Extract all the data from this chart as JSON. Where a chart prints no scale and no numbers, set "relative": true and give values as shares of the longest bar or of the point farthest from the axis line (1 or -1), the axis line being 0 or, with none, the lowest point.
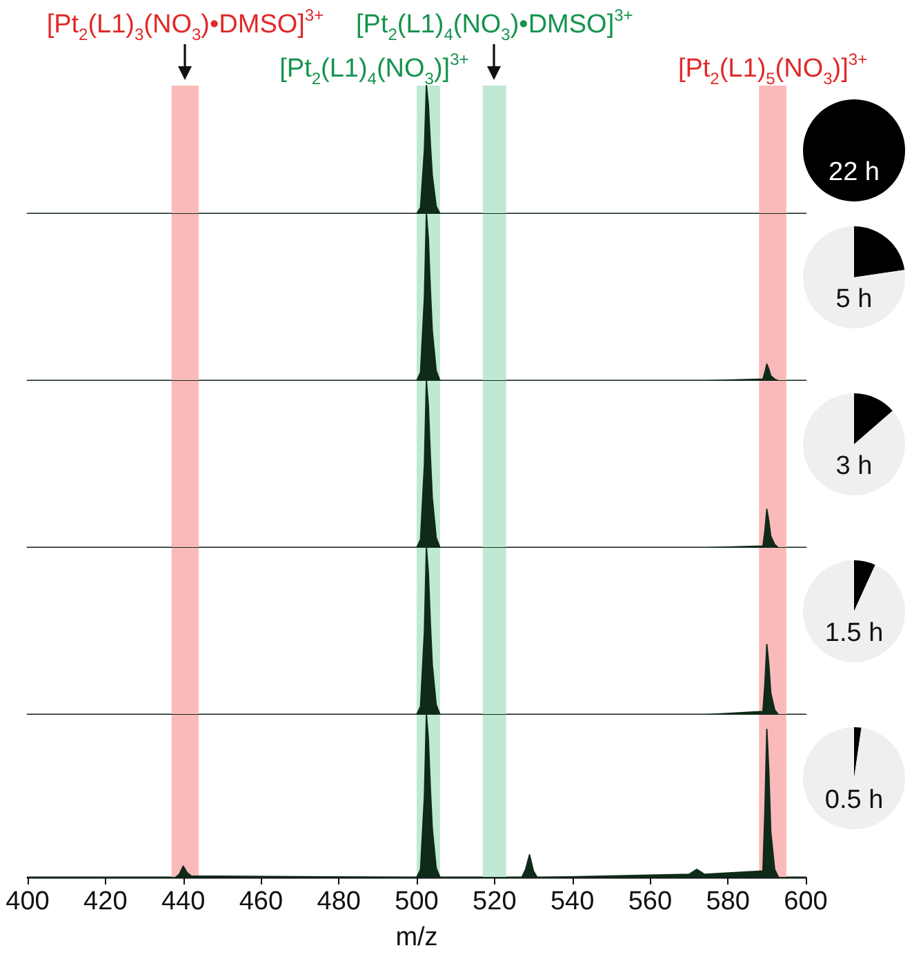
{
  "chart_data": [
    {
      "type": "area",
      "relative": true,
      "xlim": [
        400,
        600
      ],
      "xticks": [
        400,
        420,
        440,
        460,
        480,
        500,
        520,
        540,
        560,
        580,
        600
      ],
      "tick_labels": false,
      "grid": false,
      "bands": [
        {
          "axis": "x",
          "from": 437,
          "to": 444,
          "color": "#fbbaba",
          "label": "[Pt$_{2}$(L1)$_{3}$(NO$_{3}$)•DMSO]$^{3+}$"
        },
        {
          "axis": "x",
          "from": 500,
          "to": 506,
          "color": "#bfe9d2",
          "label": "[Pt$_{2}$(L1)$_{4}$(NO$_{3}$)]$^{3+}$"
        },
        {
          "axis": "x",
          "from": 517,
          "to": 523,
          "color": "#bfe9d2",
          "label": "[Pt$_{2}$(L1)$_{4}$(NO$_{3}$)•DMSO]$^{3+}$"
        },
        {
          "axis": "x",
          "from": 588,
          "to": 595,
          "color": "#fbbaba",
          "label": "[Pt$_{2}$(L1)$_{5}$(NO$_{3}$)]$^{3+}$"
        }
      ],
      "series": [
        {
          "color": "#0f2a19",
          "x": [
            400,
            438,
            439,
            440,
            441,
            442,
            500,
            501,
            502,
            502.5,
            503,
            503.5,
            504,
            505,
            506,
            527,
            528,
            529,
            530,
            531,
            570,
            572,
            574,
            589,
            589.5,
            590,
            590.5,
            591,
            592,
            593,
            600
          ],
          "values": [
            0,
            0,
            0,
            0,
            0,
            0,
            0,
            0.05,
            0.5,
            1,
            0.85,
            0.55,
            0.3,
            0.06,
            0,
            0,
            0,
            0,
            0,
            0,
            0,
            0,
            0,
            0,
            0,
            0,
            0,
            0,
            0,
            0,
            0
          ]
        }
      ]
    },
    {
      "type": "pie",
      "categories": [
        null,
        null
      ],
      "values": [
        100,
        0
      ],
      "colors": [
        "#000000",
        "#efefef"
      ],
      "annotations": [
        "22 h"
      ]
    },
    {
      "type": "area",
      "relative": true,
      "xlim": [
        400,
        600
      ],
      "xticks": [
        400,
        420,
        440,
        460,
        480,
        500,
        520,
        540,
        560,
        580,
        600
      ],
      "tick_labels": false,
      "grid": false,
      "bands": [
        {
          "axis": "x",
          "from": 437,
          "to": 444,
          "color": "#fbbaba"
        },
        {
          "axis": "x",
          "from": 500,
          "to": 506,
          "color": "#bfe9d2"
        },
        {
          "axis": "x",
          "from": 517,
          "to": 523,
          "color": "#bfe9d2"
        },
        {
          "axis": "x",
          "from": 588,
          "to": 595,
          "color": "#fbbaba"
        }
      ],
      "series": [
        {
          "color": "#0f2a19",
          "x": [
            400,
            438,
            439,
            440,
            441,
            442,
            500,
            501,
            502,
            502.5,
            503,
            503.5,
            504,
            505,
            506,
            527,
            528,
            529,
            530,
            531,
            570,
            572,
            574,
            589,
            589.5,
            590,
            590.5,
            591,
            592,
            593,
            600
          ],
          "values": [
            0,
            0,
            0,
            0,
            0,
            0,
            0,
            0.05,
            0.5,
            1,
            0.85,
            0.55,
            0.3,
            0.06,
            0,
            0,
            0,
            0,
            0,
            0,
            0,
            0,
            0,
            0.01,
            0.05,
            0.1,
            0.07,
            0.03,
            0.01,
            0,
            0
          ]
        }
      ]
    },
    {
      "type": "pie",
      "categories": [
        null,
        null
      ],
      "values": [
        22.7,
        77.3
      ],
      "colors": [
        "#000000",
        "#efefef"
      ],
      "annotations": [
        "5 h"
      ]
    },
    {
      "type": "area",
      "relative": true,
      "xlim": [
        400,
        600
      ],
      "xticks": [
        400,
        420,
        440,
        460,
        480,
        500,
        520,
        540,
        560,
        580,
        600
      ],
      "tick_labels": false,
      "grid": false,
      "bands": [
        {
          "axis": "x",
          "from": 437,
          "to": 444,
          "color": "#fbbaba"
        },
        {
          "axis": "x",
          "from": 500,
          "to": 506,
          "color": "#bfe9d2"
        },
        {
          "axis": "x",
          "from": 517,
          "to": 523,
          "color": "#bfe9d2"
        },
        {
          "axis": "x",
          "from": 588,
          "to": 595,
          "color": "#fbbaba"
        }
      ],
      "series": [
        {
          "color": "#0f2a19",
          "x": [
            400,
            438,
            439,
            440,
            441,
            442,
            500,
            501,
            502,
            502.5,
            503,
            503.5,
            504,
            505,
            506,
            527,
            528,
            529,
            530,
            531,
            570,
            572,
            574,
            589,
            589.5,
            590,
            590.5,
            591,
            592,
            593,
            600
          ],
          "values": [
            0,
            0,
            0,
            0,
            0,
            0,
            0,
            0.05,
            0.5,
            1,
            0.85,
            0.55,
            0.3,
            0.06,
            0,
            0,
            0,
            0,
            0,
            0,
            0,
            0,
            0,
            0.01,
            0.1,
            0.23,
            0.16,
            0.07,
            0.02,
            0,
            0
          ]
        }
      ]
    },
    {
      "type": "pie",
      "categories": [
        null,
        null
      ],
      "values": [
        13.6,
        86.4
      ],
      "colors": [
        "#000000",
        "#efefef"
      ],
      "annotations": [
        "3 h"
      ]
    },
    {
      "type": "area",
      "relative": true,
      "xlim": [
        400,
        600
      ],
      "xticks": [
        400,
        420,
        440,
        460,
        480,
        500,
        520,
        540,
        560,
        580,
        600
      ],
      "tick_labels": false,
      "grid": false,
      "bands": [
        {
          "axis": "x",
          "from": 437,
          "to": 444,
          "color": "#fbbaba"
        },
        {
          "axis": "x",
          "from": 500,
          "to": 506,
          "color": "#bfe9d2"
        },
        {
          "axis": "x",
          "from": 517,
          "to": 523,
          "color": "#bfe9d2"
        },
        {
          "axis": "x",
          "from": 588,
          "to": 595,
          "color": "#fbbaba"
        }
      ],
      "series": [
        {
          "color": "#0f2a19",
          "x": [
            400,
            438,
            439,
            440,
            441,
            442,
            500,
            501,
            502,
            502.5,
            503,
            503.5,
            504,
            505,
            506,
            527,
            528,
            529,
            530,
            531,
            570,
            572,
            574,
            589,
            589.5,
            590,
            590.5,
            591,
            592,
            593,
            600
          ],
          "values": [
            0,
            0,
            0,
            0,
            0,
            0,
            0,
            0.05,
            0.5,
            1,
            0.85,
            0.55,
            0.3,
            0.06,
            0,
            0,
            0,
            0,
            0,
            0,
            0,
            0,
            0,
            0.02,
            0.18,
            0.42,
            0.3,
            0.13,
            0.03,
            0,
            0
          ]
        }
      ]
    },
    {
      "type": "pie",
      "categories": [
        null,
        null
      ],
      "values": [
        6.8,
        93.2
      ],
      "colors": [
        "#000000",
        "#efefef"
      ],
      "annotations": [
        "1.5 h"
      ]
    },
    {
      "type": "area",
      "relative": true,
      "xlim": [
        400,
        600
      ],
      "xticks": [
        400,
        420,
        440,
        460,
        480,
        500,
        520,
        540,
        560,
        580,
        600
      ],
      "xlabel": "m/z",
      "grid": false,
      "bands": [
        {
          "axis": "x",
          "from": 437,
          "to": 444,
          "color": "#fbbaba"
        },
        {
          "axis": "x",
          "from": 500,
          "to": 506,
          "color": "#bfe9d2"
        },
        {
          "axis": "x",
          "from": 517,
          "to": 523,
          "color": "#bfe9d2"
        },
        {
          "axis": "x",
          "from": 588,
          "to": 595,
          "color": "#fbbaba"
        }
      ],
      "series": [
        {
          "color": "#0f2a19",
          "x": [
            400,
            438,
            439,
            440,
            441,
            442,
            500,
            501,
            502,
            502.5,
            503,
            503.5,
            504,
            505,
            506,
            527,
            528,
            529,
            530,
            531,
            570,
            572,
            574,
            589,
            589.5,
            590,
            590.5,
            591,
            592,
            593,
            600
          ],
          "values": [
            0,
            0,
            0.02,
            0.07,
            0.03,
            0.01,
            0,
            0.05,
            0.5,
            1,
            0.85,
            0.55,
            0.3,
            0.06,
            0,
            0,
            0.05,
            0.14,
            0.04,
            0,
            0.02,
            0.05,
            0.02,
            0.04,
            0.4,
            0.91,
            0.65,
            0.28,
            0.05,
            0,
            0
          ]
        }
      ]
    },
    {
      "type": "pie",
      "categories": [
        null,
        null
      ],
      "values": [
        2.3,
        97.7
      ],
      "colors": [
        "#000000",
        "#efefef"
      ],
      "annotations": [
        "0.5 h"
      ]
    }
  ]
}
